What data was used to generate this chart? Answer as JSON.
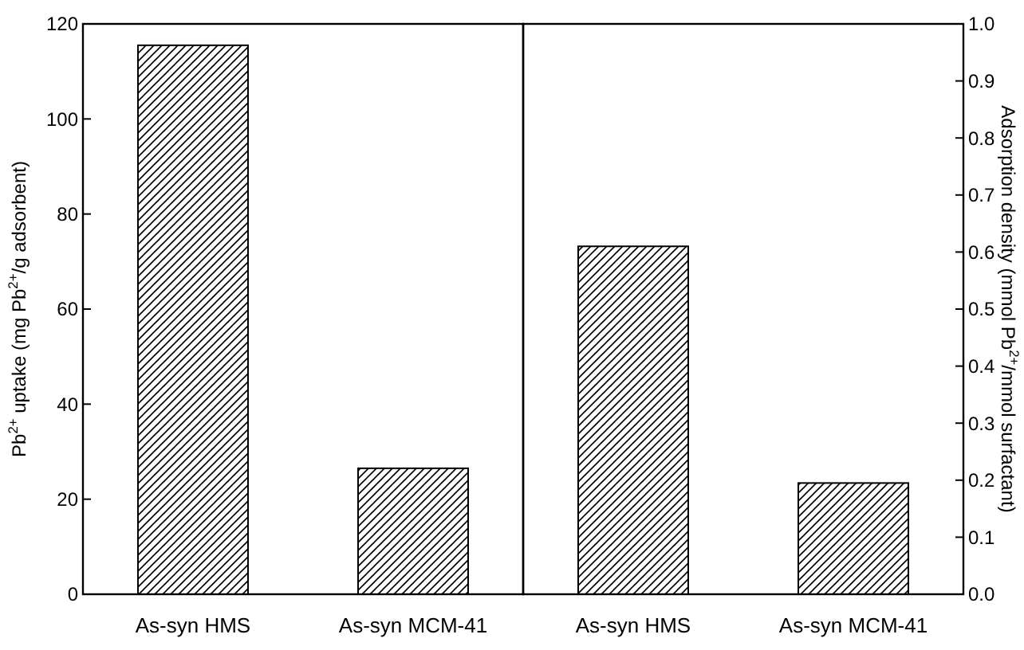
{
  "chart_data": [
    {
      "type": "bar",
      "categories": [
        "As-syn HMS",
        "As-syn MCM-41"
      ],
      "ylabel": "Pb$^{2+}$ uptake (mg Pb$^{2+}$/g adsorbent)",
      "ylim": [
        0,
        120
      ],
      "yticks": [
        0,
        20,
        40,
        60,
        80,
        100,
        120
      ],
      "series": [
        {
          "color": "#000000",
          "values": [
            115.5,
            26.5
          ]
        }
      ]
    },
    {
      "type": "bar",
      "categories": [
        "As-syn HMS",
        "As-syn MCM-41"
      ],
      "y2label": "Adsorption density (mmol Pb$^{2+}$/mmol surfactant)",
      "y2lim": [
        0,
        1
      ],
      "y2ticks": [
        {
          "value": 0,
          "label": "0.0"
        },
        0.1,
        0.2,
        0.3,
        0.4,
        0.5,
        0.6,
        0.7,
        0.8,
        0.9,
        {
          "value": 1,
          "label": "1.0"
        }
      ],
      "series": [
        {
          "color": "#000000",
          "axis": "y2",
          "values": [
            0.61,
            0.195
          ]
        }
      ]
    }
  ]
}
